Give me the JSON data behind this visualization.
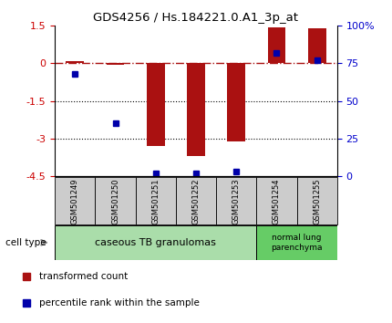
{
  "title": "GDS4256 / Hs.184221.0.A1_3p_at",
  "samples": [
    "GSM501249",
    "GSM501250",
    "GSM501251",
    "GSM501252",
    "GSM501253",
    "GSM501254",
    "GSM501255"
  ],
  "transformed_counts": [
    0.1,
    -0.05,
    -3.3,
    -3.7,
    -3.1,
    1.45,
    1.4
  ],
  "percentile_ranks": [
    68,
    35,
    2,
    2,
    3,
    82,
    77
  ],
  "ylim_left": [
    -4.5,
    1.5
  ],
  "ylim_right": [
    0,
    100
  ],
  "yticks_left": [
    1.5,
    0,
    -1.5,
    -3,
    -4.5
  ],
  "yticks_right": [
    100,
    75,
    50,
    25,
    0
  ],
  "ytick_labels_left": [
    "1.5",
    "0",
    "-1.5",
    "-3",
    "-4.5"
  ],
  "ytick_labels_right": [
    "100%",
    "75",
    "50",
    "25",
    "0"
  ],
  "hlines": [
    -1.5,
    -3.0
  ],
  "bar_color": "#aa1111",
  "dot_color": "#0000aa",
  "bar_width": 0.45,
  "cell_type_label": "cell type",
  "ct_label_1": "caseous TB granulomas",
  "ct_label_2": "normal lung\nparenchyma",
  "ct_color_1": "#aaddaa",
  "ct_color_2": "#66cc66",
  "legend_bar_label": "transformed count",
  "legend_dot_label": "percentile rank within the sample",
  "tick_color_left": "#cc0000",
  "tick_color_right": "#0000cc"
}
